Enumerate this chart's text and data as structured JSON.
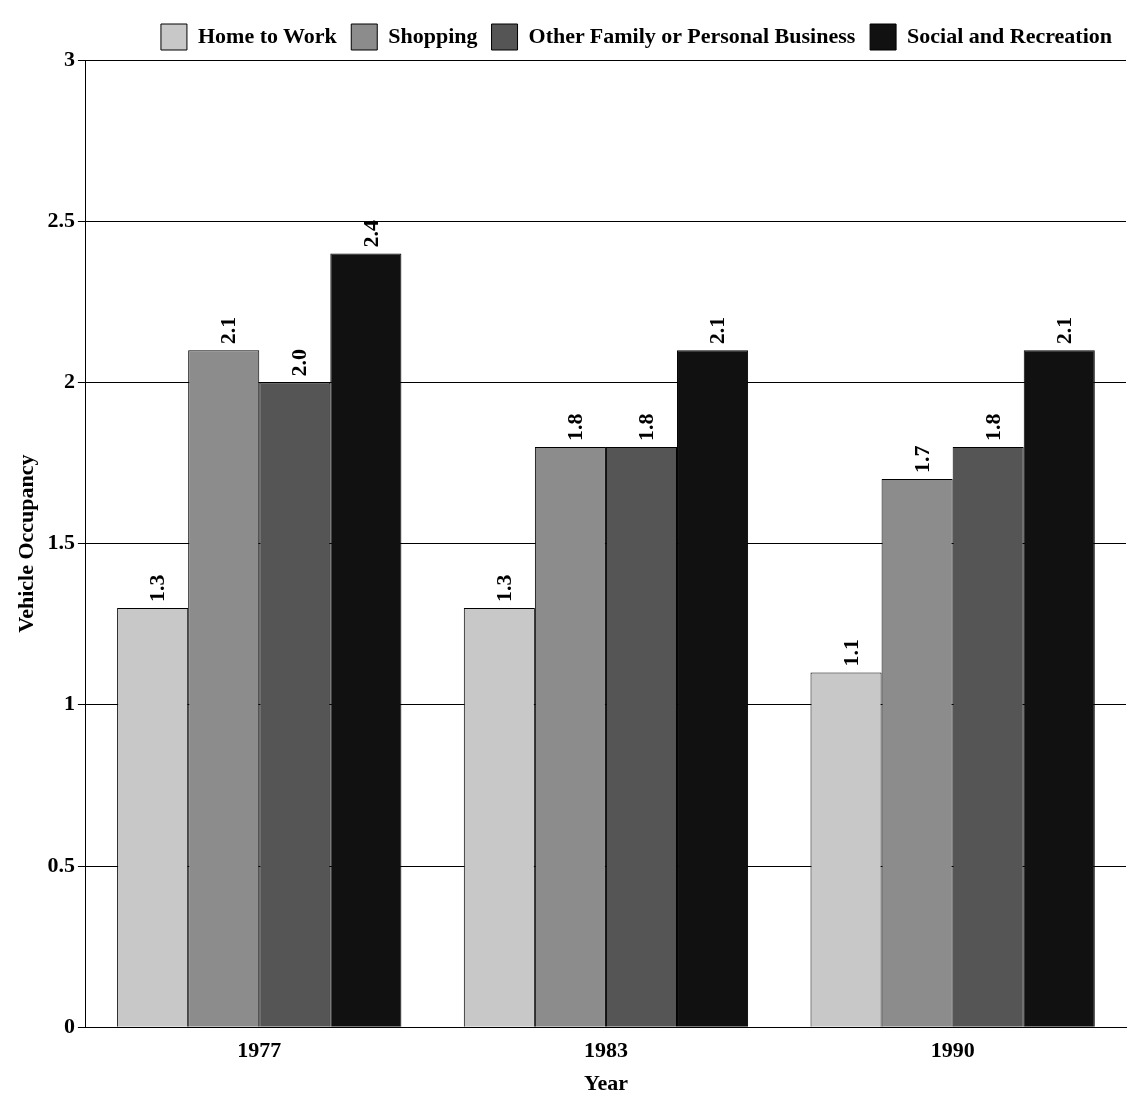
{
  "chart_data": {
    "type": "bar",
    "xlabel": "Year",
    "ylabel": "Vehicle Occupancy",
    "categories": [
      "1977",
      "1983",
      "1990"
    ],
    "series": [
      {
        "name": "Home to Work",
        "color": "#c8c8c8",
        "values": [
          1.3,
          1.3,
          1.1
        ],
        "value_labels": [
          "1.3",
          "1.3",
          "1.1"
        ]
      },
      {
        "name": "Shopping",
        "color": "#8c8c8c",
        "values": [
          2.1,
          1.8,
          1.7
        ],
        "value_labels": [
          "2.1",
          "1.8",
          "1.7"
        ]
      },
      {
        "name": "Other Family or Personal Business",
        "color": "#555555",
        "values": [
          2.0,
          1.8,
          1.8
        ],
        "value_labels": [
          "2.0",
          "1.8",
          "1.8"
        ]
      },
      {
        "name": "Social and Recreation",
        "color": "#111111",
        "values": [
          2.4,
          2.1,
          2.1
        ],
        "value_labels": [
          "2.4",
          "2.1",
          "2.1"
        ]
      }
    ],
    "ylim": [
      0,
      3
    ],
    "yticks": [
      0,
      0.5,
      1,
      1.5,
      2,
      2.5,
      3
    ],
    "grid": "y",
    "legend": "top right"
  }
}
